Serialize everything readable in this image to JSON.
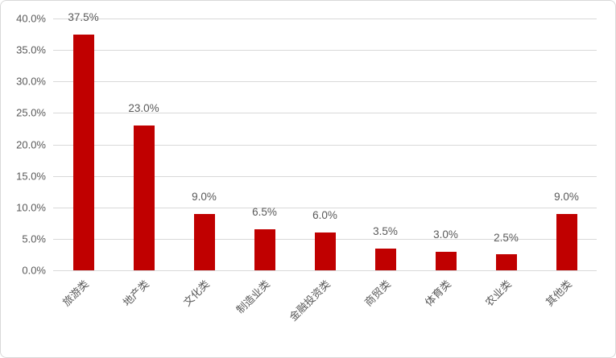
{
  "chart_data": {
    "type": "bar",
    "title": "",
    "xlabel": "",
    "ylabel": "",
    "categories": [
      "旅游类",
      "地产类",
      "文化类",
      "制造业类",
      "金融投资类",
      "商贸类",
      "体育类",
      "农业类",
      "其他类"
    ],
    "values": [
      37.5,
      23.0,
      9.0,
      6.5,
      6.0,
      3.5,
      3.0,
      2.5,
      9.0
    ],
    "data_labels": [
      "37.5%",
      "23.0%",
      "9.0%",
      "6.5%",
      "6.0%",
      "3.5%",
      "3.0%",
      "2.5%",
      "9.0%"
    ],
    "ylim": [
      0,
      40
    ],
    "ytick_step": 5,
    "yticks": [
      "0.0%",
      "5.0%",
      "10.0%",
      "15.0%",
      "20.0%",
      "25.0%",
      "30.0%",
      "35.0%",
      "40.0%"
    ],
    "grid": "horizontal",
    "legend": "none",
    "colors": {
      "bar": "#c00000",
      "gridline": "#d9d9d9",
      "axis_text": "#595959",
      "data_label_text": "#595959",
      "chart_border": "#d9d9d9",
      "background": "#ffffff"
    }
  }
}
